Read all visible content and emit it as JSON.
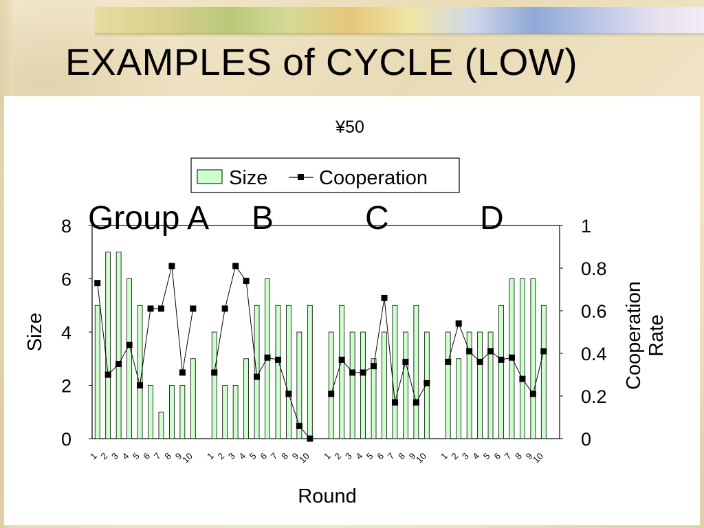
{
  "slide": {
    "title": "EXAMPLES of CYCLE (LOW)",
    "group_labels": [
      "Group A",
      "B",
      "C",
      "D"
    ]
  },
  "colors": {
    "bar_fill": "#ccffcc",
    "bar_stroke": "#000000",
    "line": "#000000",
    "background": "#efe4c6"
  },
  "chart_data": {
    "type": "bar",
    "title": "¥50",
    "xlabel": "Round",
    "ylabel": "Size",
    "y2label": "Cooperation Rate",
    "ylim": [
      0,
      8
    ],
    "y2lim": [
      0,
      1
    ],
    "yticks": [
      "0",
      "2",
      "4",
      "6",
      "8"
    ],
    "y2ticks": [
      "0",
      "0.2",
      "0.4",
      "0.6",
      "0.8",
      "1"
    ],
    "legend": {
      "position": "top-center",
      "entries": [
        "Size",
        "Cooperation"
      ]
    },
    "groups": [
      {
        "name": "Group A",
        "categories": [
          "1",
          "2",
          "3",
          "4",
          "5",
          "6",
          "7",
          "8",
          "9",
          "10"
        ],
        "size": [
          5,
          7,
          7,
          6,
          5,
          2,
          1,
          2,
          2,
          3
        ],
        "cooperation": [
          0.73,
          0.3,
          0.35,
          0.44,
          0.25,
          0.61,
          0.61,
          0.81,
          0.31,
          0.61
        ]
      },
      {
        "name": "B",
        "categories": [
          "1",
          "2",
          "3",
          "4",
          "5",
          "6",
          "7",
          "8",
          "9",
          "10"
        ],
        "size": [
          4,
          2,
          2,
          3,
          5,
          6,
          5,
          5,
          4,
          5
        ],
        "cooperation": [
          0.31,
          0.61,
          0.81,
          0.74,
          0.29,
          0.38,
          0.37,
          0.21,
          0.06,
          0.0
        ]
      },
      {
        "name": "C",
        "categories": [
          "1",
          "2",
          "3",
          "4",
          "5",
          "6",
          "7",
          "8",
          "9",
          "10"
        ],
        "size": [
          4,
          5,
          4,
          4,
          3,
          4,
          5,
          4,
          5,
          4
        ],
        "cooperation": [
          0.21,
          0.37,
          0.31,
          0.31,
          0.34,
          0.66,
          0.17,
          0.36,
          0.17,
          0.26
        ]
      },
      {
        "name": "D",
        "categories": [
          "1",
          "2",
          "3",
          "4",
          "5",
          "6",
          "7",
          "8",
          "9",
          "10"
        ],
        "size": [
          4,
          3,
          4,
          4,
          4,
          5,
          6,
          6,
          6,
          5
        ],
        "cooperation": [
          0.36,
          0.54,
          0.41,
          0.36,
          0.41,
          0.37,
          0.38,
          0.28,
          0.21,
          0.41
        ]
      }
    ]
  }
}
